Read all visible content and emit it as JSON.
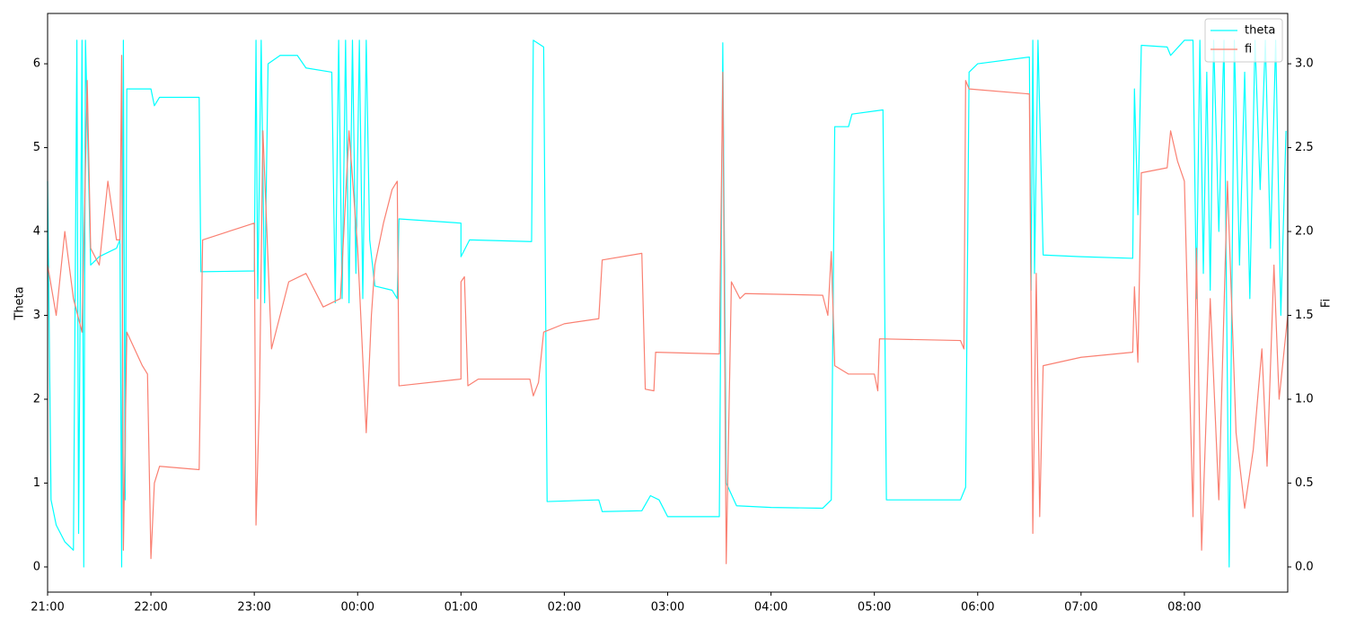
{
  "chart_data": {
    "type": "line",
    "y_label": "Theta",
    "y2_label": "Fi",
    "xlim": [
      "21:00",
      "09:00"
    ],
    "xticks": [
      "21:00",
      "22:00",
      "23:00",
      "00:00",
      "01:00",
      "02:00",
      "03:00",
      "04:00",
      "05:00",
      "06:00",
      "07:00",
      "08:00"
    ],
    "ylim": [
      -0.3,
      6.6
    ],
    "yticks": [
      0,
      1,
      2,
      3,
      4,
      5,
      6
    ],
    "y2lim": [
      -0.15,
      3.3
    ],
    "y2ticks": [
      {
        "value": 0,
        "label": "0.0"
      },
      {
        "value": 0.5,
        "label": "0.5"
      },
      {
        "value": 1,
        "label": "1.0"
      },
      {
        "value": 1.5,
        "label": "1.5"
      },
      {
        "value": 2,
        "label": "2.0"
      },
      {
        "value": 2.5,
        "label": "2.5"
      },
      {
        "value": 3,
        "label": "3.0"
      }
    ],
    "legend": "upper right",
    "series": [
      {
        "name": "theta",
        "color": "#00ffff",
        "x": [
          "21:00",
          "21:02",
          "21:05",
          "21:10",
          "21:15",
          "21:17",
          "21:18",
          "21:20",
          "21:21",
          "21:22",
          "21:25",
          "21:30",
          "21:40",
          "21:42",
          "21:43",
          "21:44",
          "21:45",
          "21:46",
          "22:00",
          "22:02",
          "22:05",
          "22:28",
          "22:29",
          "23:00",
          "23:01",
          "23:02",
          "23:04",
          "23:06",
          "23:08",
          "23:15",
          "23:25",
          "23:30",
          "23:45",
          "23:47",
          "23:49",
          "23:51",
          "23:53",
          "23:55",
          "23:57",
          "23:59",
          "00:01",
          "00:03",
          "00:05",
          "00:07",
          "00:10",
          "00:20",
          "00:23",
          "00:24",
          "01:00",
          "01:00",
          "01:05",
          "01:40",
          "01:41",
          "01:42",
          "01:48",
          "01:50",
          "02:20",
          "02:22",
          "02:45",
          "02:50",
          "02:55",
          "03:00",
          "03:30",
          "03:32",
          "03:34",
          "03:40",
          "04:00",
          "04:30",
          "04:35",
          "04:37",
          "04:45",
          "04:47",
          "05:05",
          "05:07",
          "05:50",
          "05:53",
          "05:55",
          "06:00",
          "06:30",
          "06:31",
          "06:32",
          "06:33",
          "06:35",
          "06:38",
          "07:00",
          "07:30",
          "07:31",
          "07:33",
          "07:35",
          "07:50",
          "07:52",
          "08:00",
          "08:05",
          "08:07",
          "08:09",
          "08:11",
          "08:13",
          "08:15",
          "08:17",
          "08:20",
          "08:23",
          "08:26",
          "08:29",
          "08:32",
          "08:35",
          "08:38",
          "08:41",
          "08:44",
          "08:47",
          "08:50",
          "08:53",
          "08:56",
          "08:59"
        ],
        "values": [
          4.6,
          0.8,
          0.5,
          0.3,
          0.2,
          6.28,
          0.4,
          6.28,
          0.0,
          6.28,
          3.6,
          3.7,
          3.8,
          3.9,
          0.0,
          6.28,
          0.8,
          5.7,
          5.7,
          5.5,
          5.6,
          5.6,
          3.52,
          3.53,
          6.28,
          3.2,
          6.28,
          3.15,
          6.0,
          6.1,
          6.1,
          5.95,
          5.9,
          3.15,
          6.28,
          3.2,
          6.28,
          3.15,
          6.28,
          3.5,
          6.28,
          3.2,
          6.28,
          3.9,
          3.35,
          3.3,
          3.2,
          4.15,
          4.1,
          3.7,
          3.9,
          3.88,
          3.88,
          6.28,
          6.2,
          0.78,
          0.8,
          0.66,
          0.67,
          0.85,
          0.8,
          0.6,
          0.6,
          6.25,
          1.0,
          0.73,
          0.71,
          0.7,
          0.8,
          5.25,
          5.25,
          5.4,
          5.45,
          0.8,
          0.8,
          0.95,
          5.9,
          6.0,
          6.08,
          3.3,
          6.28,
          3.5,
          6.28,
          3.72,
          3.7,
          3.68,
          5.7,
          4.2,
          6.22,
          6.2,
          6.1,
          6.28,
          6.28,
          3.2,
          6.28,
          3.5,
          5.9,
          3.3,
          6.28,
          4.0,
          6.28,
          0.0,
          6.28,
          3.6,
          5.9,
          3.2,
          6.28,
          4.5,
          6.28,
          3.8,
          6.28,
          3.0,
          5.2
        ]
      },
      {
        "name": "fi",
        "color": "#fa8072",
        "axis": "y2",
        "x": [
          "21:00",
          "21:05",
          "21:10",
          "21:15",
          "21:20",
          "21:23",
          "21:25",
          "21:30",
          "21:35",
          "21:40",
          "21:42",
          "21:43",
          "21:44",
          "21:46",
          "21:55",
          "21:58",
          "22:00",
          "22:02",
          "22:05",
          "22:28",
          "22:30",
          "23:00",
          "23:01",
          "23:03",
          "23:05",
          "23:10",
          "23:20",
          "23:30",
          "23:40",
          "23:50",
          "23:55",
          "00:00",
          "00:05",
          "00:08",
          "00:10",
          "00:15",
          "00:20",
          "00:23",
          "00:24",
          "01:00",
          "01:00",
          "01:02",
          "01:04",
          "01:10",
          "01:40",
          "01:42",
          "01:45",
          "01:48",
          "02:00",
          "02:20",
          "02:22",
          "02:45",
          "02:47",
          "02:52",
          "02:53",
          "03:30",
          "03:32",
          "03:34",
          "03:37",
          "03:42",
          "03:45",
          "04:30",
          "04:33",
          "04:35",
          "04:37",
          "04:45",
          "05:00",
          "05:02",
          "05:03",
          "05:50",
          "05:52",
          "05:53",
          "05:55",
          "06:30",
          "06:32",
          "06:34",
          "06:36",
          "06:38",
          "07:00",
          "07:30",
          "07:31",
          "07:33",
          "07:35",
          "07:50",
          "07:52",
          "07:56",
          "08:00",
          "08:05",
          "08:07",
          "08:10",
          "08:15",
          "08:20",
          "08:25",
          "08:30",
          "08:35",
          "08:40",
          "08:45",
          "08:48",
          "08:52",
          "08:55",
          "09:00"
        ],
        "values": [
          1.8,
          1.5,
          2.0,
          1.6,
          1.4,
          2.9,
          1.9,
          1.8,
          2.3,
          1.95,
          1.95,
          3.05,
          0.1,
          1.4,
          1.2,
          1.15,
          0.05,
          0.5,
          0.6,
          0.58,
          1.95,
          2.05,
          0.25,
          1.0,
          2.6,
          1.3,
          1.7,
          1.75,
          1.55,
          1.6,
          2.6,
          1.9,
          0.8,
          1.5,
          1.8,
          2.05,
          2.25,
          2.3,
          1.08,
          1.12,
          1.7,
          1.73,
          1.08,
          1.12,
          1.12,
          1.02,
          1.1,
          1.4,
          1.45,
          1.48,
          1.83,
          1.87,
          1.06,
          1.05,
          1.28,
          1.27,
          2.95,
          0.02,
          1.7,
          1.6,
          1.63,
          1.62,
          1.5,
          1.88,
          1.2,
          1.15,
          1.15,
          1.05,
          1.36,
          1.35,
          1.3,
          2.9,
          2.85,
          2.82,
          0.2,
          1.75,
          0.3,
          1.2,
          1.25,
          1.28,
          1.67,
          1.22,
          2.35,
          2.38,
          2.6,
          2.42,
          2.3,
          0.3,
          1.9,
          0.1,
          1.6,
          0.4,
          2.3,
          0.8,
          0.35,
          0.7,
          1.3,
          0.6,
          1.8,
          1.0,
          1.5
        ]
      }
    ]
  }
}
